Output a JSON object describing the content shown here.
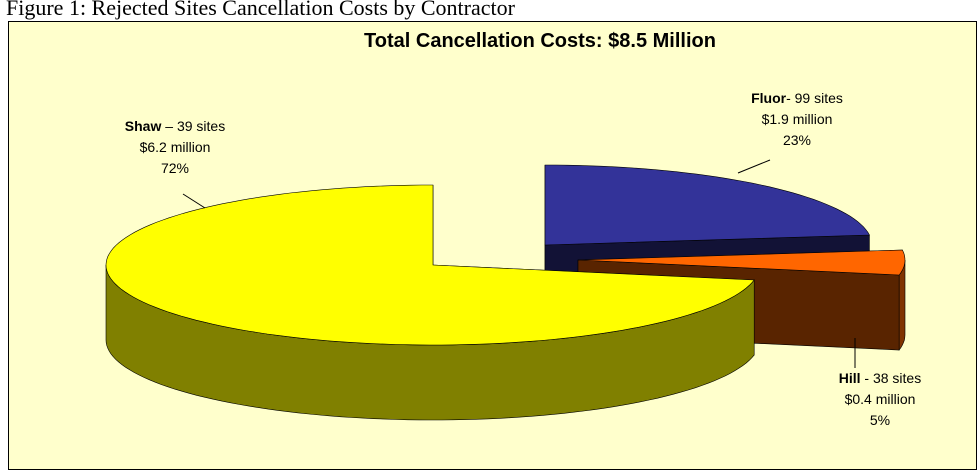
{
  "figure_caption": "Figure 1: Rejected Sites Cancellation Costs by Contractor",
  "chart_data": {
    "type": "pie3d",
    "title": "Total Cancellation Costs: $8.5 Million",
    "categories": [
      "Fluor",
      "Hill",
      "Shaw"
    ],
    "values": [
      23,
      5,
      72
    ],
    "value_labels": [
      "23%",
      "5%",
      "72%"
    ],
    "details": [
      {
        "sites": "- 99 sites",
        "cost": "$1.9 million"
      },
      {
        "sites": " - 38 sites",
        "cost": "$0.4 million"
      },
      {
        "sites": " – 39 sites",
        "cost": "$6.2 million"
      }
    ],
    "colors": [
      "#333399",
      "#FF6600",
      "#FFFF00"
    ],
    "background": "#FFFFCC"
  }
}
